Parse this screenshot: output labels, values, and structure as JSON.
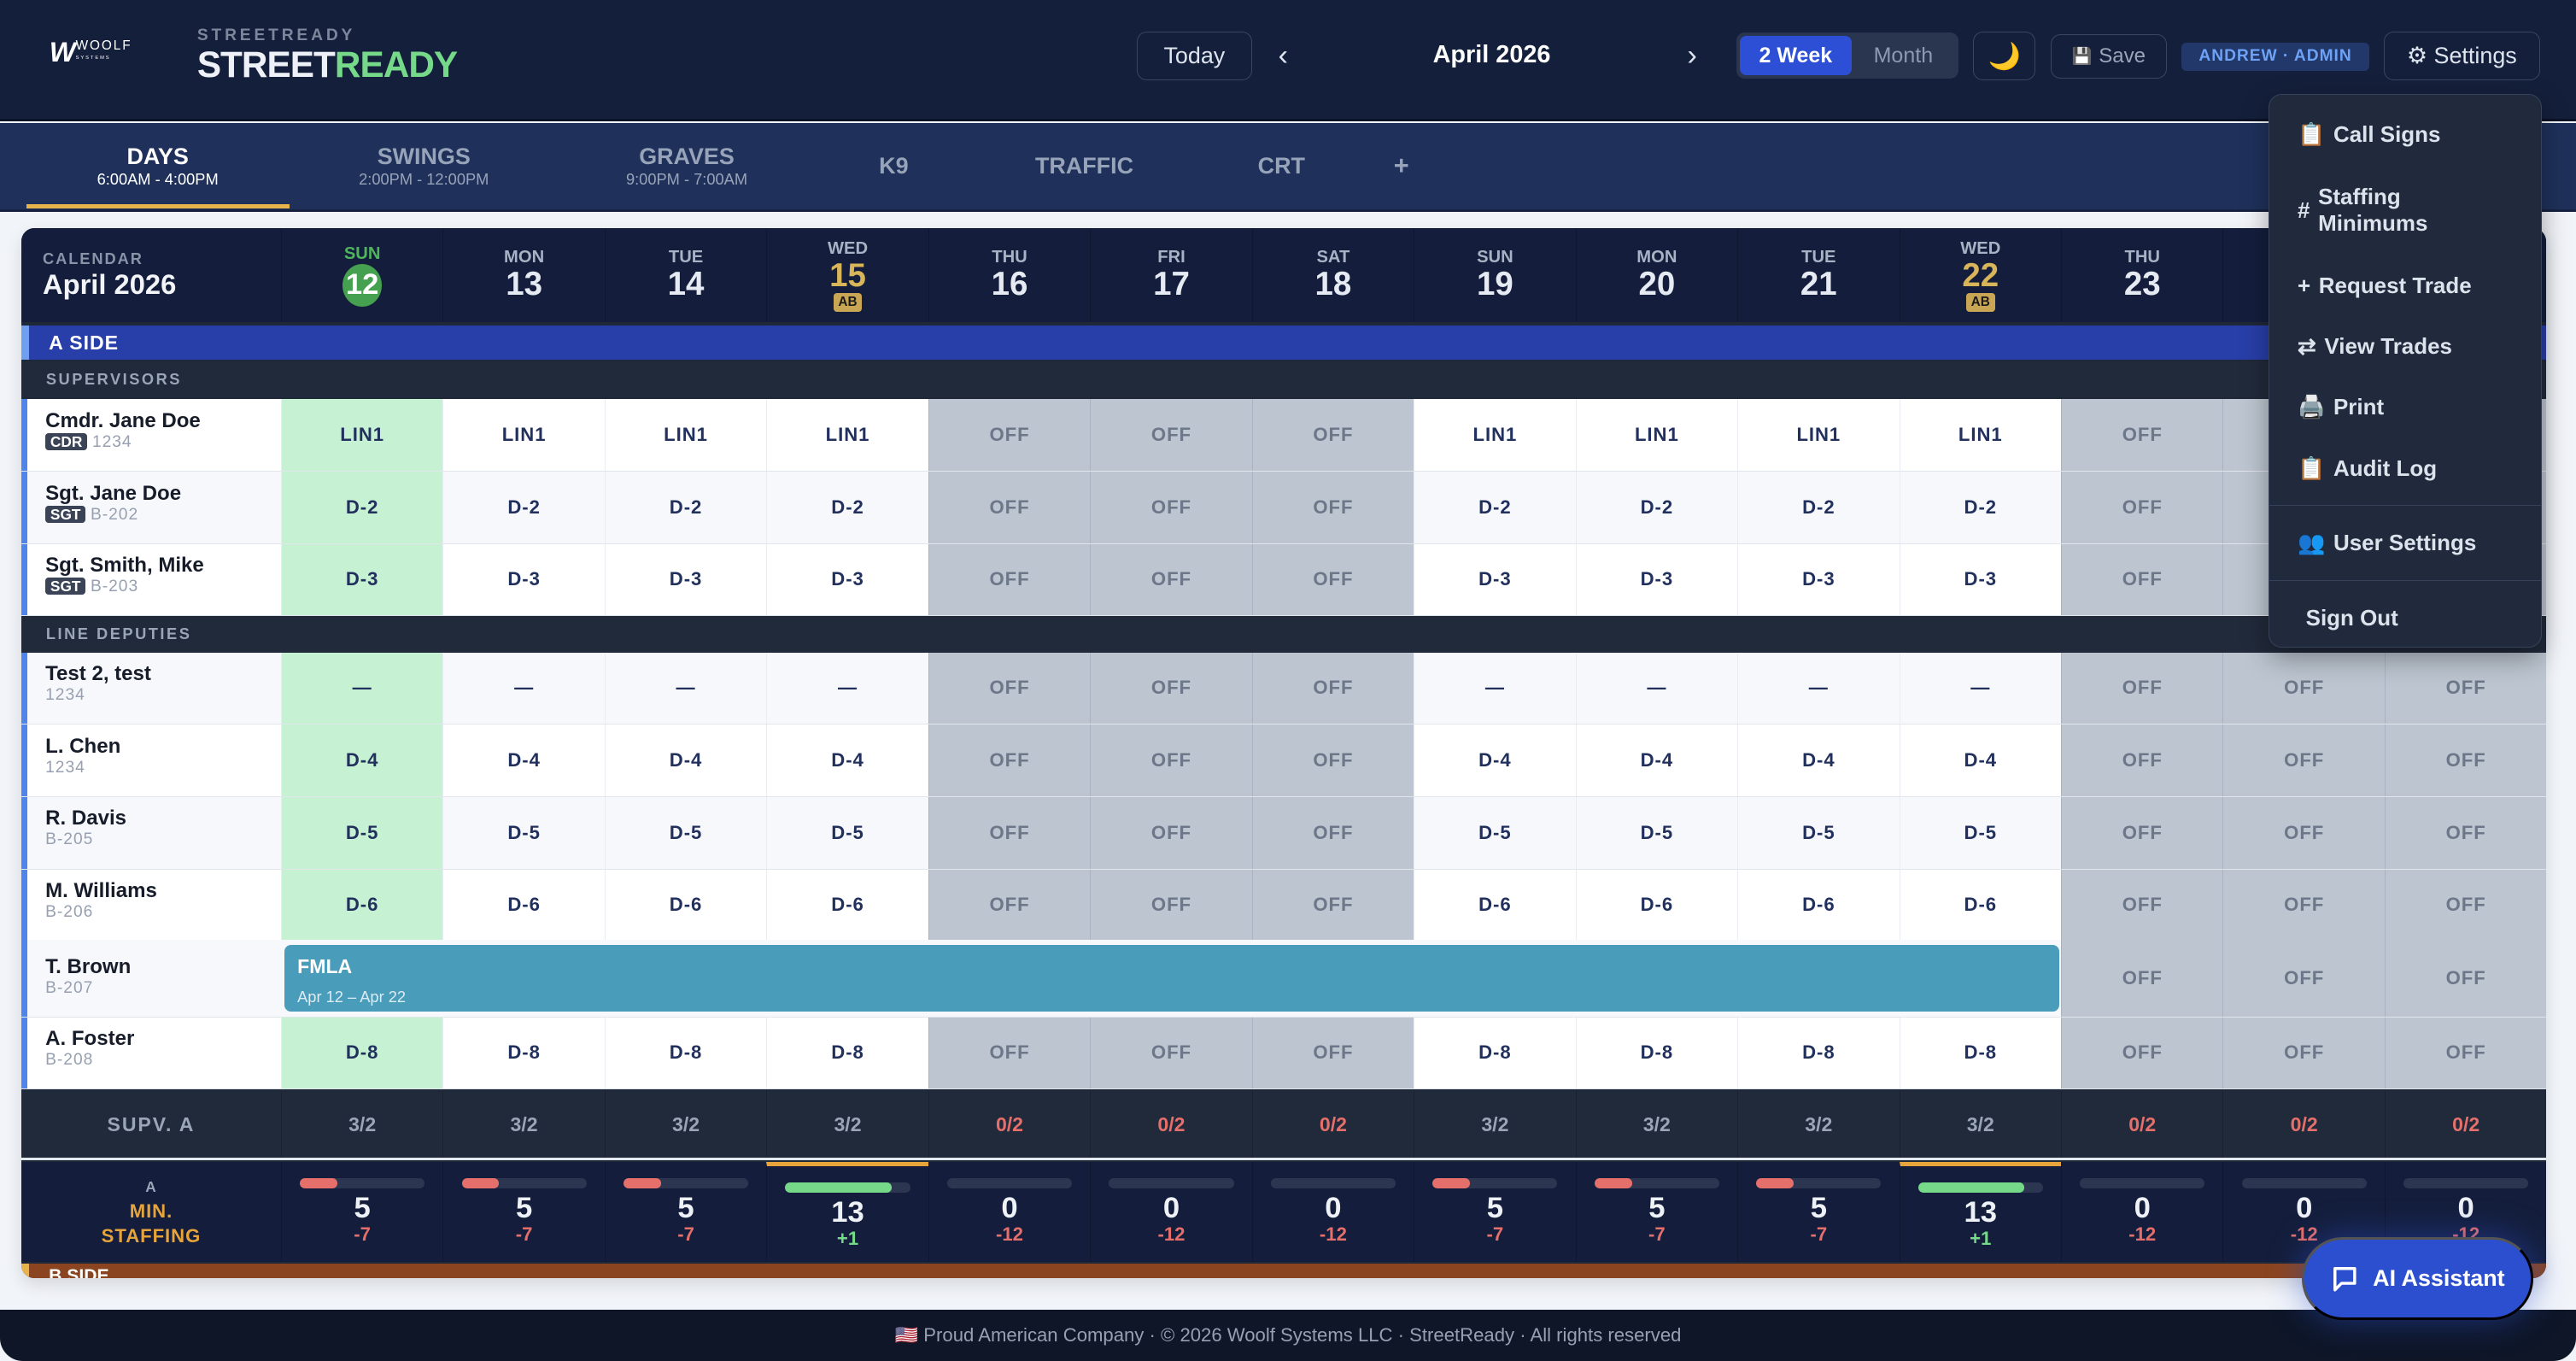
{
  "header": {
    "logo_text": "WOOLF",
    "logo_sub": "SYSTEMS",
    "brand_small": "STREETREADY",
    "brand_street": "STREET",
    "brand_ready": "READY",
    "today": "Today",
    "prev": "‹",
    "next": "›",
    "month": "April 2026",
    "view_2week": "2 Week",
    "view_month": "Month",
    "theme_icon": "🌙",
    "save": "Save",
    "save_icon": "💾",
    "user_badge": "ANDREW · ADMIN",
    "settings": "⚙ Settings"
  },
  "tabs": [
    {
      "label": "DAYS",
      "time": "6:00AM - 4:00PM",
      "active": true
    },
    {
      "label": "SWINGS",
      "time": "2:00PM - 12:00PM"
    },
    {
      "label": "GRAVES",
      "time": "9:00PM - 7:00AM"
    },
    {
      "label": "K9",
      "time": ""
    },
    {
      "label": "TRAFFIC",
      "time": ""
    },
    {
      "label": "CRT",
      "time": ""
    }
  ],
  "add_tab": "+",
  "calendar": {
    "label": "CALENDAR",
    "month": "April 2026"
  },
  "days": [
    {
      "dow": "SUN",
      "num": "12",
      "today": true
    },
    {
      "dow": "MON",
      "num": "13"
    },
    {
      "dow": "TUE",
      "num": "14"
    },
    {
      "dow": "WED",
      "num": "15",
      "badge": "AB"
    },
    {
      "dow": "THU",
      "num": "16"
    },
    {
      "dow": "FRI",
      "num": "17"
    },
    {
      "dow": "SAT",
      "num": "18"
    },
    {
      "dow": "SUN",
      "num": "19"
    },
    {
      "dow": "MON",
      "num": "20"
    },
    {
      "dow": "TUE",
      "num": "21"
    },
    {
      "dow": "WED",
      "num": "22",
      "badge": "AB"
    },
    {
      "dow": "THU",
      "num": "23"
    },
    {
      "dow": "",
      "num": ""
    },
    {
      "dow": "",
      "num": ""
    }
  ],
  "a_side": "A SIDE",
  "b_side": "B SIDE",
  "supervisors_label": "SUPERVISORS",
  "deputies_label": "LINE DEPUTIES",
  "supervisors": [
    {
      "name": "Cmdr. Jane Doe",
      "rank": "CDR",
      "id": "1234",
      "cells": [
        "LIN1",
        "LIN1",
        "LIN1",
        "LIN1",
        "OFF",
        "OFF",
        "OFF",
        "LIN1",
        "LIN1",
        "LIN1",
        "LIN1",
        "OFF",
        "OFF",
        "OFF"
      ]
    },
    {
      "name": "Sgt. Jane Doe",
      "rank": "SGT",
      "id": "B-202",
      "cells": [
        "D-2",
        "D-2",
        "D-2",
        "D-2",
        "OFF",
        "OFF",
        "OFF",
        "D-2",
        "D-2",
        "D-2",
        "D-2",
        "OFF",
        "OFF",
        "OFF"
      ]
    },
    {
      "name": "Sgt. Smith, Mike",
      "rank": "SGT",
      "id": "B-203",
      "cells": [
        "D-3",
        "D-3",
        "D-3",
        "D-3",
        "OFF",
        "OFF",
        "OFF",
        "D-3",
        "D-3",
        "D-3",
        "D-3",
        "OFF",
        "OFF",
        "OFF"
      ]
    }
  ],
  "deputies": [
    {
      "name": "Test 2, test",
      "id": "1234",
      "cells": [
        "—",
        "—",
        "—",
        "—",
        "OFF",
        "OFF",
        "OFF",
        "—",
        "—",
        "—",
        "—",
        "OFF",
        "OFF",
        "OFF"
      ]
    },
    {
      "name": "L. Chen",
      "id": "1234",
      "cells": [
        "D-4",
        "D-4",
        "D-4",
        "D-4",
        "OFF",
        "OFF",
        "OFF",
        "D-4",
        "D-4",
        "D-4",
        "D-4",
        "OFF",
        "OFF",
        "OFF"
      ]
    },
    {
      "name": "R. Davis",
      "id": "B-205",
      "cells": [
        "D-5",
        "D-5",
        "D-5",
        "D-5",
        "OFF",
        "OFF",
        "OFF",
        "D-5",
        "D-5",
        "D-5",
        "D-5",
        "OFF",
        "OFF",
        "OFF"
      ]
    },
    {
      "name": "M. Williams",
      "id": "B-206",
      "cells": [
        "D-6",
        "D-6",
        "D-6",
        "D-6",
        "OFF",
        "OFF",
        "OFF",
        "D-6",
        "D-6",
        "D-6",
        "D-6",
        "OFF",
        "OFF",
        "OFF"
      ]
    },
    {
      "name": "T. Brown",
      "id": "B-207",
      "leave": {
        "type": "FMLA",
        "range": "Apr 12 – Apr 22",
        "days": 11
      },
      "cells": [
        "",
        "",
        "",
        "",
        "",
        "",
        "",
        "",
        "",
        "",
        "",
        "OFF",
        "OFF",
        "OFF"
      ]
    },
    {
      "name": "A. Foster",
      "id": "B-208",
      "cells": [
        "D-8",
        "D-8",
        "D-8",
        "D-8",
        "OFF",
        "OFF",
        "OFF",
        "D-8",
        "D-8",
        "D-8",
        "D-8",
        "OFF",
        "OFF",
        "OFF"
      ]
    }
  ],
  "supv_row": {
    "label": "SUPV. A",
    "values": [
      "3/2",
      "3/2",
      "3/2",
      "3/2",
      "0/2",
      "0/2",
      "0/2",
      "3/2",
      "3/2",
      "3/2",
      "3/2",
      "0/2",
      "0/2",
      "0/2"
    ]
  },
  "min_staffing": {
    "side": "A",
    "label1": "MIN.",
    "label2": "STAFFING",
    "counts": [
      "5",
      "5",
      "5",
      "13",
      "0",
      "0",
      "0",
      "5",
      "5",
      "5",
      "13",
      "0",
      "0",
      "0"
    ],
    "deltas": [
      "-7",
      "-7",
      "-7",
      "+1",
      "-12",
      "-12",
      "-12",
      "-7",
      "-7",
      "-7",
      "+1",
      "-12",
      "-12",
      "-12"
    ],
    "fill_pct": [
      30,
      30,
      30,
      85,
      0,
      0,
      0,
      30,
      30,
      30,
      85,
      0,
      0,
      0
    ]
  },
  "menu": [
    {
      "icon": "📋",
      "label": "Call Signs"
    },
    {
      "icon": "#",
      "label": "Staffing Minimums"
    },
    {
      "icon": "+",
      "label": "Request Trade"
    },
    {
      "icon": "⇄",
      "label": "View Trades"
    },
    {
      "icon": "🖨️",
      "label": "Print"
    },
    {
      "icon": "📋",
      "label": "Audit Log"
    },
    {
      "icon": "👥",
      "label": "User Settings",
      "sep": true
    },
    {
      "icon": "",
      "label": "Sign Out",
      "sep": true
    }
  ],
  "ai_button": "AI Assistant",
  "footer": "🇺🇸 Proud American Company  ·  © 2026 Woolf Systems LLC · StreetReady · All rights reserved",
  "colors": {
    "today": "#c6f2d3",
    "off": "#bcc5d0",
    "bad": "#e56f6a",
    "good": "#76d98a",
    "accent": "#2c4fd6",
    "gold": "#e6b44a"
  }
}
